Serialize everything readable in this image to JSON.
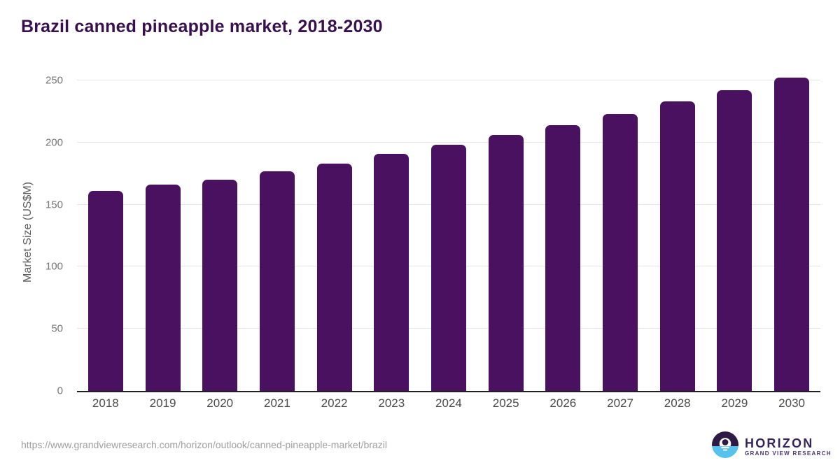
{
  "title": "Brazil canned pineapple market, 2018-2030",
  "chart_data": {
    "type": "bar",
    "title": "Brazil canned pineapple market, 2018-2030",
    "categories": [
      "2018",
      "2019",
      "2020",
      "2021",
      "2022",
      "2023",
      "2024",
      "2025",
      "2026",
      "2027",
      "2028",
      "2029",
      "2030"
    ],
    "values": [
      161,
      166,
      170,
      177,
      183,
      191,
      198,
      206,
      214,
      223,
      233,
      242,
      252
    ],
    "xlabel": "",
    "ylabel": "Market Size (US$M)",
    "ylim": [
      0,
      250
    ],
    "yticks": [
      0,
      50,
      100,
      150,
      200,
      250
    ],
    "grid": "horizontal gridlines only",
    "legend": "none",
    "bar_color": "#4a1161"
  },
  "colors": {
    "title_text": "#38104e",
    "bar": "#4a1161",
    "logo_purple": "#35235c",
    "logo_blue": "#58c2ee"
  },
  "footer": {
    "source_url": "https://www.grandviewresearch.com/horizon/outlook/canned-pineapple-market/brazil",
    "logo_wordmark": "HORIZON",
    "logo_subtitle": "GRAND VIEW RESEARCH"
  }
}
